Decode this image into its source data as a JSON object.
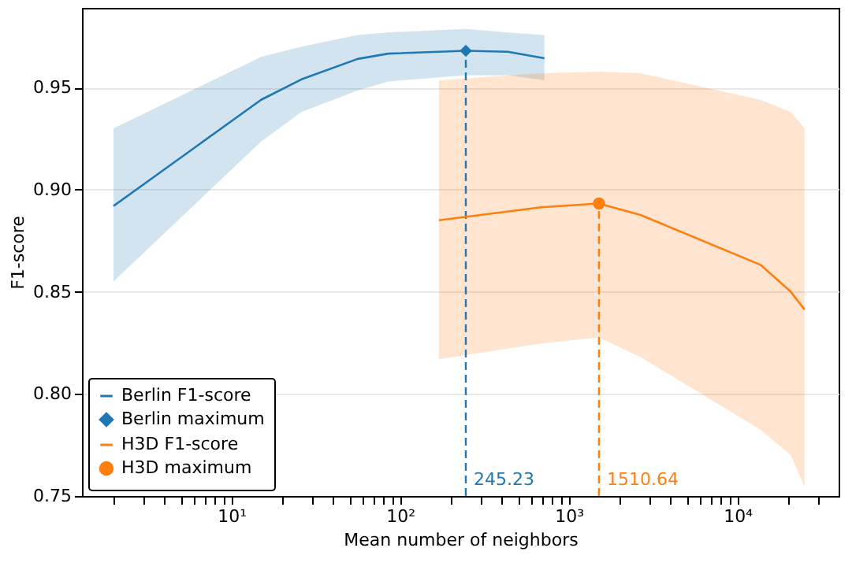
{
  "chart_data": {
    "type": "line",
    "xlabel": "Mean number of neighbors",
    "ylabel": "F1-score",
    "log": "x",
    "grid": "y",
    "legend": "bottom left",
    "xlim": [
      1.3,
      39800
    ],
    "ylim": [
      0.75,
      0.989
    ],
    "xticks": [
      {
        "value": 2,
        "label": null
      },
      {
        "value": 3,
        "label": null
      },
      {
        "value": 4,
        "label": null
      },
      {
        "value": 5,
        "label": null
      },
      {
        "value": 6,
        "label": null
      },
      {
        "value": 7,
        "label": null
      },
      {
        "value": 8,
        "label": null
      },
      {
        "value": 9,
        "label": null
      },
      {
        "value": 10,
        "label": "10¹"
      },
      {
        "value": 20,
        "label": null
      },
      {
        "value": 30,
        "label": null
      },
      {
        "value": 40,
        "label": null
      },
      {
        "value": 50,
        "label": null
      },
      {
        "value": 60,
        "label": null
      },
      {
        "value": 70,
        "label": null
      },
      {
        "value": 80,
        "label": null
      },
      {
        "value": 90,
        "label": null
      },
      {
        "value": 100,
        "label": "10²"
      },
      {
        "value": 200,
        "label": null
      },
      {
        "value": 300,
        "label": null
      },
      {
        "value": 400,
        "label": null
      },
      {
        "value": 500,
        "label": null
      },
      {
        "value": 600,
        "label": null
      },
      {
        "value": 700,
        "label": null
      },
      {
        "value": 800,
        "label": null
      },
      {
        "value": 900,
        "label": null
      },
      {
        "value": 1000,
        "label": "10³"
      },
      {
        "value": 2000,
        "label": null
      },
      {
        "value": 3000,
        "label": null
      },
      {
        "value": 4000,
        "label": null
      },
      {
        "value": 5000,
        "label": null
      },
      {
        "value": 6000,
        "label": null
      },
      {
        "value": 7000,
        "label": null
      },
      {
        "value": 8000,
        "label": null
      },
      {
        "value": 9000,
        "label": null
      },
      {
        "value": 10000,
        "label": "10⁴"
      },
      {
        "value": 20000,
        "label": null
      },
      {
        "value": 30000,
        "label": null
      }
    ],
    "yticks": [
      0.75,
      {
        "value": 0.8,
        "label": "0.80"
      },
      0.85,
      {
        "value": 0.9,
        "label": "0.90"
      },
      0.95
    ],
    "series": [
      {
        "name": "Berlin F1-score",
        "color": "#1f77b4",
        "x": [
          2,
          15,
          26,
          56,
          85,
          245.23,
          435,
          717
        ],
        "values": [
          0.892,
          0.944,
          0.954,
          0.964,
          0.9666,
          0.968,
          0.9675,
          0.9643
        ],
        "lower": [
          0.855,
          0.9236,
          0.938,
          0.9485,
          0.953,
          0.956,
          0.956,
          0.9535
        ],
        "upper": [
          0.93,
          0.965,
          0.97,
          0.9757,
          0.977,
          0.9787,
          0.977,
          0.9757
        ]
      },
      {
        "name": "Berlin maximum",
        "type": "scatter",
        "marker": "diamond",
        "color": "#1f77b4",
        "x": [
          245.23
        ],
        "values": [
          0.968
        ]
      },
      {
        "name": "H3D F1-score",
        "color": "#ff7f0e",
        "x": [
          170,
          687,
          1510.64,
          2660,
          13700,
          20700,
          25000
        ],
        "values": [
          0.885,
          0.8914,
          0.8932,
          0.8876,
          0.8632,
          0.85,
          0.8413
        ],
        "lower": [
          0.817,
          0.8247,
          0.8277,
          0.818,
          0.7825,
          0.77,
          0.7545
        ],
        "upper": [
          0.9535,
          0.957,
          0.9578,
          0.957,
          0.944,
          0.938,
          0.93
        ]
      },
      {
        "name": "H3D maximum",
        "type": "scatter",
        "marker": "circle",
        "color": "#ff7f0e",
        "x": [
          1510.64
        ],
        "values": [
          0.8932
        ]
      }
    ],
    "ref_lines": [
      {
        "axis": "x",
        "value": 245.23,
        "label": "245.23",
        "color": "#1f77b4",
        "line_style": "dashed"
      },
      {
        "axis": "x",
        "value": 1510.64,
        "label": "1510.64",
        "color": "#ff7f0e",
        "line_style": "dashed"
      }
    ]
  }
}
